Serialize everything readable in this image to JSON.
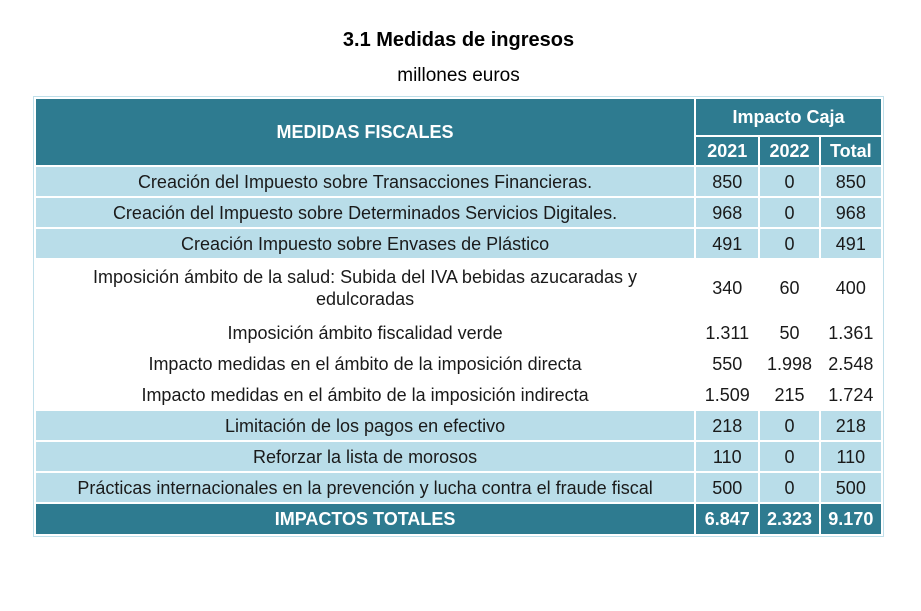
{
  "title": "3.1 Medidas de ingresos",
  "subtitle": "millones euros",
  "colors": {
    "header_bg": "#2E7B90",
    "total_bg": "#2E7B90",
    "row_alt_bg": "#B9DDE9",
    "outer_border": "#BFDFEA",
    "grid_gap": "#FFFFFF",
    "text_dark": "#1A1A1A",
    "header_text": "#FFFFFF"
  },
  "table": {
    "measures_header": "MEDIDAS FISCALES",
    "group_header": "Impacto Caja",
    "year_cols": [
      "2021",
      "2022",
      "Total"
    ],
    "rows": [
      {
        "label": "Creación del Impuesto sobre Transacciones Financieras.",
        "y2021": "850",
        "y2022": "0",
        "total": "850"
      },
      {
        "label": "Creación del Impuesto sobre Determinados Servicios Digitales.",
        "y2021": "968",
        "y2022": "0",
        "total": "968"
      },
      {
        "label": "Creación Impuesto sobre Envases de Plástico",
        "y2021": "491",
        "y2022": "0",
        "total": "491"
      },
      {
        "label": "Imposición ámbito de la salud: Subida del IVA bebidas azucaradas y edulcoradas",
        "y2021": "340",
        "y2022": "60",
        "total": "400"
      },
      {
        "label": "Imposición ámbito fiscalidad verde",
        "y2021": "1.311",
        "y2022": "50",
        "total": "1.361"
      },
      {
        "label": "Impacto medidas en el ámbito de la imposición directa",
        "y2021": "550",
        "y2022": "1.998",
        "total": "2.548"
      },
      {
        "label": "Impacto medidas en el ámbito de la imposición indirecta",
        "y2021": "1.509",
        "y2022": "215",
        "total": "1.724"
      },
      {
        "label": "Limitación de los pagos en efectivo",
        "y2021": "218",
        "y2022": "0",
        "total": "218"
      },
      {
        "label": "Reforzar la lista de morosos",
        "y2021": "110",
        "y2022": "0",
        "total": "110"
      },
      {
        "label": "Prácticas internacionales en la prevención y lucha contra el fraude fiscal",
        "y2021": "500",
        "y2022": "0",
        "total": "500"
      }
    ],
    "totals": {
      "label": "IMPACTOS TOTALES",
      "y2021": "6.847",
      "y2022": "2.323",
      "total": "9.170"
    }
  }
}
